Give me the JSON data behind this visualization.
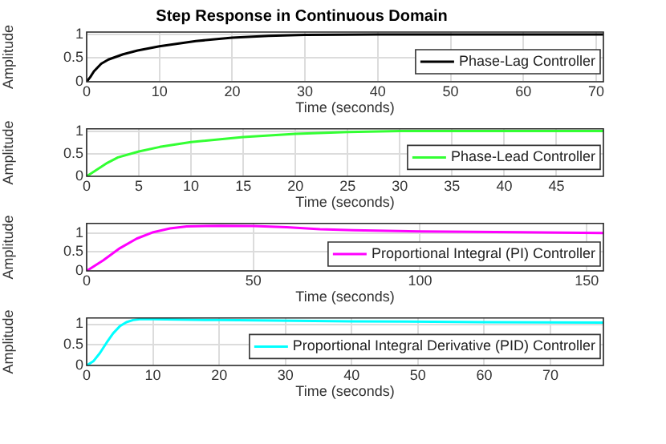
{
  "chart_data": [
    {
      "type": "line",
      "title": "Step Response in Continuous Domain",
      "xlabel": "Time (seconds)",
      "ylabel": "Amplitude",
      "xlim": [
        0,
        71
      ],
      "xticks": [
        0,
        10,
        20,
        30,
        40,
        50,
        60,
        70
      ],
      "ylim": [
        0,
        1.05
      ],
      "yticks": [
        0,
        0.5,
        1
      ],
      "grid": true,
      "legend": "right",
      "marker": "none",
      "series": [
        {
          "name": "Phase-Lag Controller",
          "color": "#000000",
          "x": [
            0,
            0.5,
            1,
            2,
            3,
            5,
            7,
            10,
            15,
            20,
            25,
            30,
            40,
            50,
            71
          ],
          "values": [
            0,
            0.1,
            0.22,
            0.38,
            0.47,
            0.58,
            0.66,
            0.75,
            0.86,
            0.93,
            0.97,
            0.99,
            1,
            1,
            1
          ]
        }
      ]
    },
    {
      "type": "line",
      "xlabel": "Time (seconds)",
      "ylabel": "Amplitude",
      "xlim": [
        0,
        49.5
      ],
      "xticks": [
        0,
        5,
        10,
        15,
        20,
        25,
        30,
        35,
        40,
        45
      ],
      "ylim": [
        0,
        1.05
      ],
      "yticks": [
        0,
        0.5,
        1
      ],
      "grid": true,
      "legend": "right",
      "marker": "none",
      "series": [
        {
          "name": "Phase-Lead Controller",
          "color": "#33ff33",
          "x": [
            0,
            1,
            2,
            3,
            5,
            7,
            10,
            15,
            20,
            25,
            30,
            40,
            49.5
          ],
          "values": [
            0,
            0.15,
            0.3,
            0.42,
            0.55,
            0.65,
            0.76,
            0.87,
            0.94,
            0.98,
            1,
            1,
            1
          ]
        }
      ]
    },
    {
      "type": "line",
      "xlabel": "Time (seconds)",
      "ylabel": "Amplitude",
      "xlim": [
        0,
        155
      ],
      "xticks": [
        0,
        50,
        100,
        150
      ],
      "ylim": [
        0,
        1.25
      ],
      "yticks": [
        0,
        0.5,
        1
      ],
      "grid": true,
      "legend": "bottom right",
      "marker": "none",
      "series": [
        {
          "name": "Proportional Integral (PI) Controller",
          "color": "#ff00ff",
          "x": [
            0,
            5,
            10,
            15,
            20,
            25,
            30,
            40,
            50,
            60,
            70,
            80,
            100,
            130,
            155
          ],
          "values": [
            0,
            0.28,
            0.6,
            0.85,
            1.02,
            1.12,
            1.17,
            1.19,
            1.18,
            1.15,
            1.1,
            1.07,
            1.04,
            1.02,
            1
          ]
        }
      ]
    },
    {
      "type": "line",
      "xlabel": "Time (seconds)",
      "ylabel": "Amplitude",
      "xlim": [
        0,
        78
      ],
      "xticks": [
        0,
        10,
        20,
        30,
        40,
        50,
        60,
        70
      ],
      "ylim": [
        0,
        1.15
      ],
      "yticks": [
        0,
        0.5,
        1
      ],
      "grid": true,
      "legend": "right",
      "marker": "none",
      "series": [
        {
          "name": "Proportional Integral Derivative (PID) Controller",
          "color": "#00ffff",
          "x": [
            0,
            1,
            2,
            3,
            4,
            5,
            6,
            7,
            8,
            10,
            20,
            40,
            60,
            78
          ],
          "values": [
            0,
            0.1,
            0.3,
            0.55,
            0.78,
            0.95,
            1.05,
            1.1,
            1.12,
            1.12,
            1.1,
            1.07,
            1.05,
            1.04
          ]
        }
      ]
    }
  ]
}
